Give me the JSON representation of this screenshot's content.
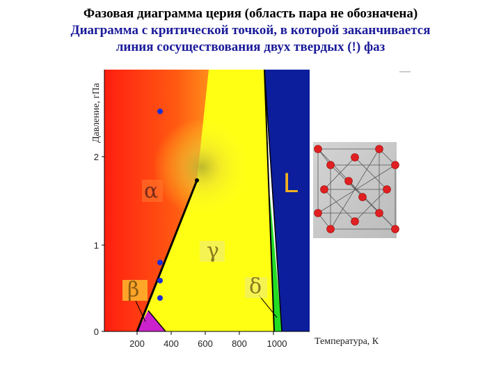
{
  "title": {
    "line1": "Фазовая диаграмма церия (область пара не обозначена)",
    "line2": "Диаграмма с критической точкой, в которой заканчивается",
    "line3": "линия сосуществования двух твердых (!) фаз"
  },
  "axes": {
    "y_label": "Давление, гПа",
    "x_label": "Температура, К",
    "y_ticks": [
      "0",
      "1",
      "2"
    ],
    "x_ticks": [
      "200",
      "400",
      "600",
      "800",
      "1000"
    ]
  },
  "phases": {
    "alpha": "α",
    "beta": "β",
    "gamma": "γ",
    "delta": "δ",
    "liquid": "L"
  },
  "colors": {
    "alpha_region": "#ff2a10",
    "gamma_region": "#ffff14",
    "liquid_region": "#0c1e9c",
    "beta_region": "#cc22cc",
    "delta_region": "#22dd22",
    "data_points": "#1a2fd6",
    "title_line1": "#000000",
    "title_line2": "#1a1a9a"
  },
  "icons": {
    "crystal_lattice": "fcc-unit-cell-icon"
  }
}
